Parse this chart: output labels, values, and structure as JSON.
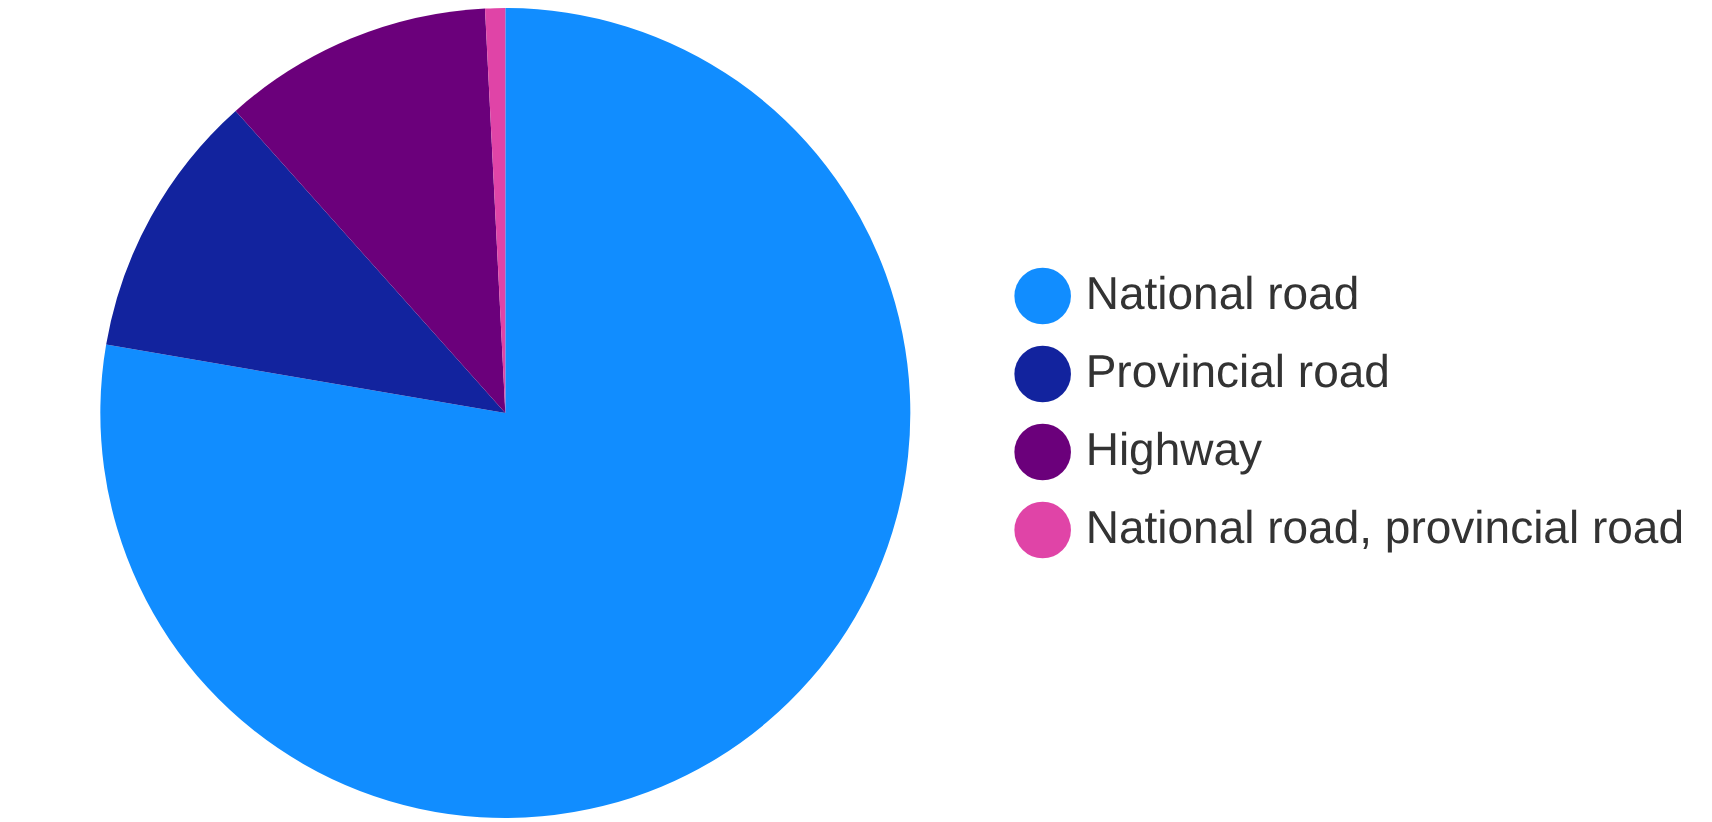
{
  "chart_data": {
    "type": "pie",
    "categories": [
      "National road",
      "Provincial road",
      "Highway",
      "National road, provincial road"
    ],
    "values": [
      77.7,
      10.7,
      10.8,
      0.8
    ],
    "colors": [
      "#118dff",
      "#12239e",
      "#6b007b",
      "#e044a7"
    ],
    "legend": "right"
  }
}
